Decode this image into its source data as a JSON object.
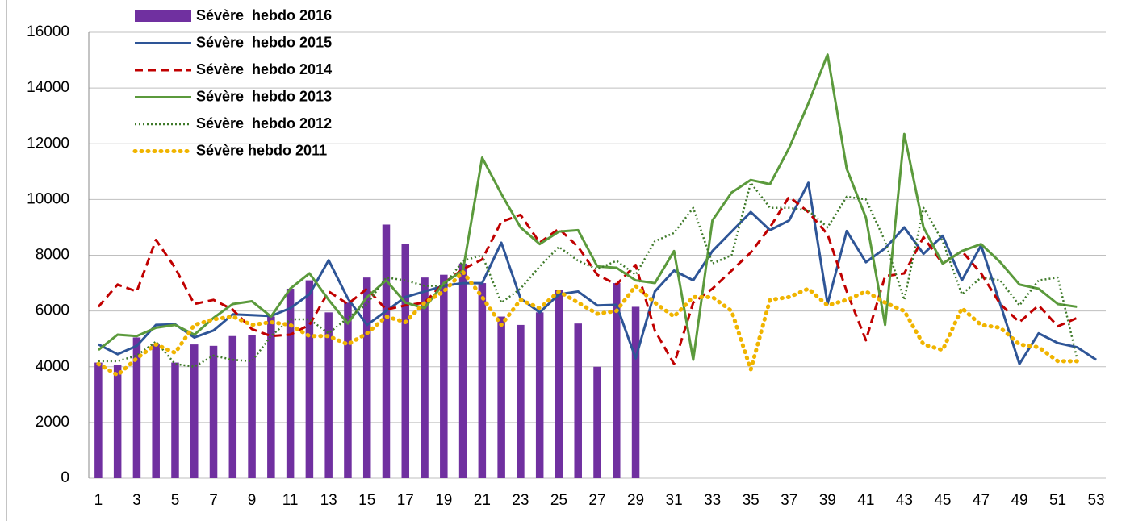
{
  "chart_data": {
    "type": "bar",
    "categories": [
      1,
      null,
      3,
      null,
      5,
      null,
      7,
      null,
      9,
      null,
      11,
      null,
      13,
      null,
      15,
      null,
      17,
      null,
      19,
      null,
      21,
      null,
      23,
      null,
      25,
      null,
      27,
      null,
      29,
      null,
      31,
      null,
      33,
      null,
      35,
      null,
      37,
      null,
      39,
      null,
      41,
      null,
      43,
      null,
      45,
      null,
      47,
      null,
      49,
      null,
      51,
      null,
      53
    ],
    "series": [
      {
        "name": "Sévère  hebdo 2016",
        "type": "bar",
        "color": "#7030a0",
        "style": "solid",
        "values": [
          4150,
          4050,
          5050,
          4800,
          4150,
          4800,
          4750,
          5100,
          5150,
          5800,
          6800,
          7100,
          5950,
          6300,
          7200,
          9100,
          8400,
          7200,
          7300,
          7700,
          7000,
          5800,
          5500,
          5950,
          6750,
          5550,
          4000,
          7000,
          6150,
          null,
          null,
          null,
          null,
          null,
          null,
          null,
          null,
          null,
          null,
          null,
          null,
          null,
          null,
          null,
          null,
          null,
          null,
          null,
          null,
          null,
          null,
          null,
          null
        ]
      },
      {
        "name": "Sévère  hebdo 2015",
        "type": "line",
        "color": "#2e5597",
        "style": "solid",
        "values": [
          4800,
          4450,
          4750,
          5500,
          5520,
          5050,
          5300,
          5880,
          5850,
          5820,
          6100,
          6600,
          7820,
          6450,
          5500,
          6000,
          6500,
          6700,
          6900,
          7000,
          7000,
          8450,
          6450,
          5950,
          6600,
          6700,
          6200,
          6220,
          4300,
          6700,
          7450,
          7100,
          8150,
          8850,
          9550,
          8900,
          9250,
          10600,
          6250,
          8870,
          7750,
          8250,
          9000,
          8050,
          8700,
          7100,
          8350,
          6250,
          4100,
          5200,
          4850,
          4700,
          4250
        ]
      },
      {
        "name": "Sévère  hebdo 2014",
        "type": "line",
        "color": "#c00000",
        "style": "dashed",
        "values": [
          6150,
          6950,
          6700,
          8550,
          7550,
          6250,
          6400,
          6050,
          5350,
          5100,
          5150,
          5500,
          6700,
          6250,
          6800,
          6050,
          6200,
          6300,
          7000,
          7500,
          7850,
          9200,
          9450,
          8450,
          8950,
          8300,
          7300,
          6950,
          7650,
          5300,
          4100,
          6300,
          6800,
          7450,
          8100,
          9000,
          10100,
          9550,
          8750,
          6700,
          4950,
          7250,
          7350,
          8650,
          7700,
          8150,
          7350,
          6250,
          5600,
          6200,
          5450,
          5750,
          null
        ]
      },
      {
        "name": "Sévère  hebdo 2013",
        "type": "line",
        "color": "#5b9a3c",
        "style": "solid",
        "values": [
          4600,
          5150,
          5100,
          5400,
          5500,
          5150,
          5750,
          6250,
          6350,
          5800,
          6800,
          7350,
          6400,
          5550,
          6500,
          7100,
          6300,
          6100,
          7000,
          7450,
          11500,
          10200,
          9000,
          8400,
          8850,
          8900,
          7600,
          7550,
          7100,
          7000,
          8150,
          4250,
          9250,
          10250,
          10700,
          10550,
          11850,
          13450,
          15200,
          11100,
          9350,
          5500,
          12350,
          9000,
          7700,
          8150,
          8400,
          7750,
          6950,
          6800,
          6250,
          6150,
          null
        ]
      },
      {
        "name": "Sévère  hebdo 2012",
        "type": "line",
        "color": "#3f7a2a",
        "style": "dotted",
        "values": [
          4200,
          4200,
          4400,
          4900,
          4100,
          4000,
          4400,
          4250,
          4200,
          5100,
          5700,
          5700,
          5200,
          5750,
          6250,
          7200,
          7100,
          6900,
          6900,
          7800,
          8000,
          6300,
          6800,
          7600,
          8300,
          7800,
          7500,
          7800,
          7300,
          8500,
          8800,
          9700,
          7700,
          8000,
          10600,
          9700,
          9700,
          9600,
          9000,
          10100,
          10000,
          8500,
          6400,
          9700,
          8500,
          6600,
          7200,
          7100,
          6200,
          7100,
          7200,
          4300,
          null
        ]
      },
      {
        "name": "Sévère hebdo 2011",
        "type": "line",
        "color": "#f0b400",
        "style": "bigdot",
        "values": [
          4100,
          3700,
          4300,
          4800,
          4500,
          5500,
          5700,
          5800,
          5500,
          5600,
          5500,
          5100,
          5100,
          4800,
          5200,
          5800,
          5600,
          6300,
          6700,
          7400,
          6500,
          5500,
          6400,
          6100,
          6700,
          6300,
          5900,
          6000,
          6900,
          6300,
          5800,
          6500,
          6500,
          6000,
          3900,
          6400,
          6500,
          6800,
          6200,
          6400,
          6700,
          6300,
          6000,
          4800,
          4600,
          6100,
          5500,
          5400,
          4800,
          4700,
          4200,
          4200,
          null
        ]
      }
    ],
    "ylim": [
      0,
      16000
    ],
    "yticks": [
      0,
      2000,
      4000,
      6000,
      8000,
      10000,
      12000,
      14000,
      16000
    ],
    "grid": true
  }
}
